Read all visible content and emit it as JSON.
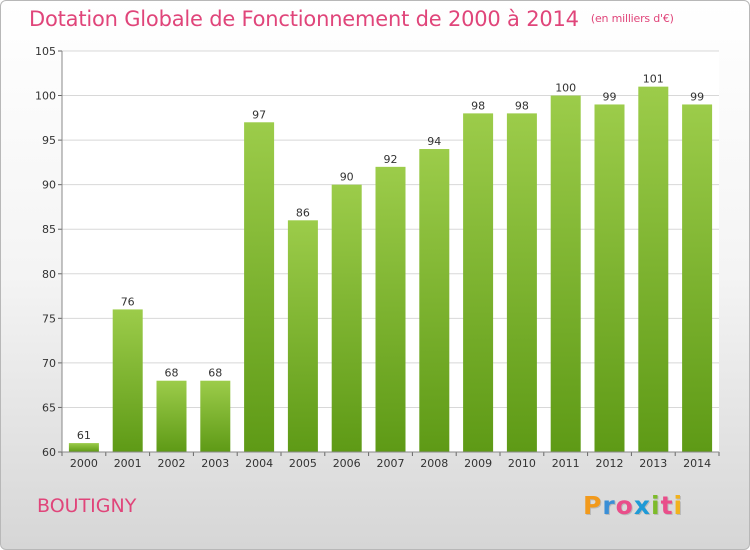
{
  "chart_data": {
    "type": "bar",
    "title": "Dotation Globale de Fonctionnement de 2000 à 2014",
    "subtitle": "(en milliers d'€)",
    "xlabel": "",
    "ylabel": "",
    "categories": [
      "2000",
      "2001",
      "2002",
      "2003",
      "2004",
      "2005",
      "2006",
      "2007",
      "2008",
      "2009",
      "2010",
      "2011",
      "2012",
      "2013",
      "2014"
    ],
    "values": [
      61,
      76,
      68,
      68,
      97,
      86,
      90,
      92,
      94,
      98,
      98,
      100,
      99,
      101,
      99
    ],
    "ylim": [
      60,
      105
    ],
    "yticks": [
      60,
      65,
      70,
      75,
      80,
      85,
      90,
      95,
      100,
      105
    ],
    "grid": true,
    "bar_color_top": "#9ccc4a",
    "bar_color_bottom": "#5e9a16"
  },
  "commune": "BOUTIGNY",
  "logo": {
    "letters": [
      "P",
      "r",
      "o",
      "x",
      "i",
      "t",
      "i"
    ],
    "colors": [
      "#f29a1c",
      "#3b8fd6",
      "#e94e8a",
      "#1f9ad6",
      "#7dbb2a",
      "#e94e8a",
      "#f2b21c"
    ]
  }
}
